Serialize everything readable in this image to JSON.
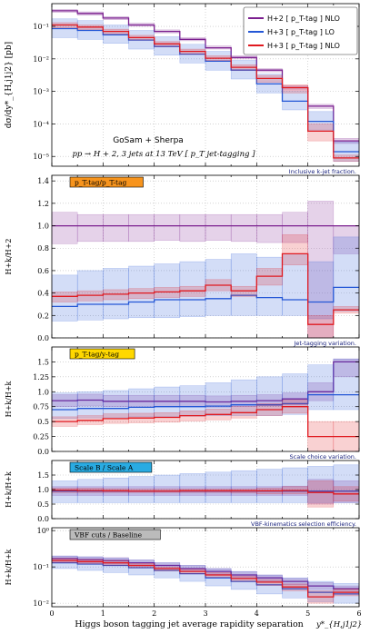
{
  "x_bins": [
    0,
    0.5,
    1,
    1.5,
    2,
    2.5,
    3,
    3.5,
    4,
    4.5,
    5,
    5.5,
    6
  ],
  "legend": [
    {
      "label": "H+2 [ p_T-tag ] NLO",
      "color": "#7b1f8f"
    },
    {
      "label": "H+3 [ p_T-tag ] LO",
      "color": "#2457d6"
    },
    {
      "label": "H+3 [ p_T-tag ] NLO",
      "color": "#e0191f"
    }
  ],
  "annotations": {
    "generator": "GoSam + Sherpa",
    "process": "pp → H + 2, 3 jets at 13 TeV  [ p_T jet-tagging ]"
  },
  "xlabel": "Higgs boson tagging jet average rapidity separation",
  "xlabel_symbol": "y*_{H,j1j2}",
  "chart_data": [
    {
      "type": "step",
      "id": "main",
      "ylabel": "dσ/dy*_{H,j1j2} [pb]",
      "yscale": "log",
      "ylim": [
        5e-06,
        0.5
      ],
      "yticks": [
        {
          "v": 1e-05,
          "l": "10⁻⁵"
        },
        {
          "v": 0.0001,
          "l": "10⁻⁴"
        },
        {
          "v": 0.001,
          "l": "10⁻³"
        },
        {
          "v": 0.01,
          "l": "10⁻²"
        },
        {
          "v": 0.1,
          "l": "10⁻¹"
        }
      ],
      "footer": "Inclusive k-jet fraction.",
      "series": [
        {
          "name": "H+2 [ p_T-tag ] NLO",
          "color": "#7b1f8f",
          "values": [
            0.3,
            0.25,
            0.18,
            0.11,
            0.07,
            0.04,
            0.022,
            0.011,
            0.0045,
            0.0013,
            0.00035,
            3e-05
          ],
          "lo": [
            0.27,
            0.22,
            0.16,
            0.1,
            0.063,
            0.036,
            0.02,
            0.0099,
            0.004,
            0.0011,
            0.0003,
            2.5e-05
          ],
          "hi": [
            0.33,
            0.28,
            0.2,
            0.125,
            0.078,
            0.045,
            0.025,
            0.0125,
            0.005,
            0.0015,
            0.0004,
            3.6e-05
          ]
        },
        {
          "name": "H+3 [ p_T-tag ] LO",
          "color": "#2457d6",
          "values": [
            0.085,
            0.075,
            0.055,
            0.038,
            0.024,
            0.014,
            0.0085,
            0.0045,
            0.0017,
            0.0005,
            0.00012,
            1.4e-05
          ],
          "lo": [
            0.045,
            0.04,
            0.03,
            0.02,
            0.013,
            0.0075,
            0.0045,
            0.0024,
            0.0009,
            0.00027,
            6.5e-05,
            7e-06
          ],
          "hi": [
            0.17,
            0.15,
            0.11,
            0.075,
            0.048,
            0.028,
            0.017,
            0.009,
            0.0034,
            0.001,
            0.00024,
            2.8e-05
          ]
        },
        {
          "name": "H+3 [ p_T-tag ] NLO",
          "color": "#e0191f",
          "values": [
            0.11,
            0.095,
            0.07,
            0.045,
            0.029,
            0.017,
            0.0105,
            0.0055,
            0.0025,
            0.0013,
            6e-05,
            9e-06
          ],
          "lo": [
            0.09,
            0.08,
            0.058,
            0.038,
            0.024,
            0.014,
            0.0088,
            0.0045,
            0.0019,
            0.0009,
            3e-05,
            7e-06
          ],
          "hi": [
            0.13,
            0.11,
            0.082,
            0.053,
            0.034,
            0.02,
            0.0125,
            0.0066,
            0.0031,
            0.0016,
            0.0001,
            1.1e-05
          ]
        }
      ]
    },
    {
      "type": "step",
      "id": "ratio1",
      "ylabel": "H+k/H+2",
      "yscale": "linear",
      "ylim": [
        0,
        1.45
      ],
      "yticks": [
        {
          "v": 0,
          "l": "0.0"
        },
        {
          "v": 0.2,
          "l": "0.2"
        },
        {
          "v": 0.4,
          "l": "0.4"
        },
        {
          "v": 0.6,
          "l": "0.6"
        },
        {
          "v": 0.8,
          "l": "0.8"
        },
        {
          "v": 1.0,
          "l": "1.0"
        },
        {
          "v": 1.2,
          "l": "1.2"
        },
        {
          "v": 1.4,
          "l": "1.4"
        }
      ],
      "tag": {
        "text": "p_T-tag/p_T-tag",
        "bg": "#f7941d"
      },
      "footer": "Jet-tagging variation.",
      "series": [
        {
          "name": "H+2 [ p_T-tag ] NLO",
          "color": "#7b1f8f",
          "values": [
            1,
            1,
            1,
            1,
            1,
            1,
            1,
            1,
            1,
            1,
            1,
            1
          ],
          "lo": [
            0.84,
            0.86,
            0.86,
            0.86,
            0.87,
            0.86,
            0.87,
            0.86,
            0.85,
            0.85,
            0.0,
            0.75
          ],
          "hi": [
            1.12,
            1.1,
            1.1,
            1.1,
            1.1,
            1.1,
            1.1,
            1.1,
            1.1,
            1.12,
            1.22,
            1.0
          ]
        },
        {
          "name": "H+3 [ p_T-tag ] LO",
          "color": "#2457d6",
          "values": [
            0.28,
            0.3,
            0.3,
            0.32,
            0.34,
            0.34,
            0.35,
            0.38,
            0.36,
            0.34,
            0.32,
            0.45
          ],
          "lo": [
            0.15,
            0.16,
            0.17,
            0.18,
            0.18,
            0.19,
            0.2,
            0.2,
            0.2,
            0.2,
            0.17,
            0.24
          ],
          "hi": [
            0.56,
            0.6,
            0.62,
            0.64,
            0.66,
            0.68,
            0.7,
            0.75,
            0.72,
            0.75,
            0.68,
            0.9
          ]
        },
        {
          "name": "H+3 [ p_T-tag ] NLO",
          "color": "#e0191f",
          "values": [
            0.37,
            0.38,
            0.39,
            0.4,
            0.41,
            0.42,
            0.47,
            0.42,
            0.55,
            0.75,
            0.12,
            0.25
          ],
          "lo": [
            0.32,
            0.33,
            0.34,
            0.35,
            0.36,
            0.37,
            0.42,
            0.37,
            0.47,
            0.65,
            0.0,
            0.22
          ],
          "hi": [
            0.41,
            0.42,
            0.43,
            0.44,
            0.45,
            0.46,
            0.52,
            0.46,
            0.62,
            0.92,
            0.2,
            0.28
          ]
        }
      ]
    },
    {
      "type": "step",
      "id": "ratio2",
      "ylabel": "H+k/H+k",
      "yscale": "linear",
      "ylim": [
        0,
        1.75
      ],
      "yticks": [
        {
          "v": 0,
          "l": "0.0"
        },
        {
          "v": 0.25,
          "l": "0.25"
        },
        {
          "v": 0.5,
          "l": "0.5"
        },
        {
          "v": 0.75,
          "l": "0.75"
        },
        {
          "v": 1.0,
          "l": "1.0"
        },
        {
          "v": 1.25,
          "l": "1.25"
        },
        {
          "v": 1.5,
          "l": "1.5"
        }
      ],
      "tag": {
        "text": "p_T-tag/y-tag",
        "bg": "#ffd800"
      },
      "footer": "Scale choice variation.",
      "series": [
        {
          "name": "H+2 [ p_T-tag ] NLO",
          "color": "#7b1f8f",
          "values": [
            0.85,
            0.86,
            0.84,
            0.84,
            0.84,
            0.84,
            0.83,
            0.84,
            0.85,
            0.88,
            1.0,
            1.5
          ],
          "lo": [
            0.75,
            0.76,
            0.75,
            0.74,
            0.75,
            0.75,
            0.74,
            0.75,
            0.76,
            0.78,
            0.85,
            1.25
          ],
          "hi": [
            0.95,
            0.96,
            0.94,
            0.94,
            0.94,
            0.94,
            0.93,
            0.94,
            0.95,
            0.98,
            1.15,
            1.55
          ]
        },
        {
          "name": "H+3 [ p_T-tag ] LO",
          "color": "#2457d6",
          "values": [
            0.7,
            0.72,
            0.72,
            0.74,
            0.75,
            0.75,
            0.76,
            0.78,
            0.78,
            0.8,
            0.95,
            0.95
          ],
          "lo": [
            0.55,
            0.56,
            0.57,
            0.58,
            0.58,
            0.59,
            0.6,
            0.6,
            0.6,
            0.62,
            0.7,
            0.7
          ],
          "hi": [
            0.98,
            1.0,
            1.02,
            1.05,
            1.08,
            1.1,
            1.15,
            1.2,
            1.25,
            1.3,
            1.45,
            1.55
          ]
        },
        {
          "name": "H+3 [ p_T-tag ] NLO",
          "color": "#e0191f",
          "values": [
            0.5,
            0.52,
            0.55,
            0.56,
            0.57,
            0.6,
            0.62,
            0.65,
            0.7,
            0.75,
            0.25,
            0.25
          ],
          "lo": [
            0.42,
            0.45,
            0.47,
            0.48,
            0.49,
            0.51,
            0.53,
            0.56,
            0.6,
            0.64,
            0.0,
            0.0
          ],
          "hi": [
            0.58,
            0.6,
            0.63,
            0.64,
            0.65,
            0.68,
            0.71,
            0.75,
            0.8,
            0.86,
            0.5,
            0.5
          ]
        }
      ]
    },
    {
      "type": "step",
      "id": "ratio3",
      "ylabel": "H+k/H+k",
      "yscale": "linear",
      "ylim": [
        0,
        2.0
      ],
      "yticks": [
        {
          "v": 0,
          "l": "0.0"
        },
        {
          "v": 0.5,
          "l": "0.5"
        },
        {
          "v": 1.0,
          "l": "1.0"
        },
        {
          "v": 1.5,
          "l": "1.5"
        }
      ],
      "tag": {
        "text": "Scale B / Scale A",
        "bg": "#29abe2"
      },
      "footer": "VBF-kinematics selection efficiency.",
      "series": [
        {
          "name": "H+2 [ p_T-tag ] NLO",
          "color": "#7b1f8f",
          "values": [
            0.95,
            0.95,
            0.95,
            0.95,
            0.95,
            0.95,
            0.95,
            0.95,
            0.95,
            0.95,
            0.95,
            0.95
          ],
          "lo": [
            0.8,
            0.8,
            0.8,
            0.8,
            0.8,
            0.8,
            0.8,
            0.8,
            0.8,
            0.8,
            0.5,
            0.55
          ],
          "hi": [
            1.1,
            1.1,
            1.1,
            1.1,
            1.1,
            1.1,
            1.1,
            1.1,
            1.1,
            1.12,
            1.35,
            1.3
          ]
        },
        {
          "name": "H+3 [ p_T-tag ] LO",
          "color": "#2457d6",
          "values": [
            0.95,
            0.95,
            0.95,
            0.95,
            0.95,
            0.95,
            0.95,
            0.95,
            0.95,
            0.95,
            0.95,
            0.95
          ],
          "lo": [
            0.55,
            0.55,
            0.55,
            0.55,
            0.55,
            0.55,
            0.55,
            0.55,
            0.55,
            0.55,
            0.55,
            0.55
          ],
          "hi": [
            1.3,
            1.35,
            1.4,
            1.45,
            1.5,
            1.55,
            1.6,
            1.65,
            1.7,
            1.75,
            1.8,
            1.85
          ]
        },
        {
          "name": "H+3 [ p_T-tag ] NLO",
          "color": "#e0191f",
          "values": [
            0.98,
            0.97,
            0.96,
            0.95,
            0.95,
            0.96,
            0.96,
            0.96,
            0.96,
            0.97,
            0.9,
            0.85
          ],
          "lo": [
            0.9,
            0.9,
            0.9,
            0.9,
            0.9,
            0.9,
            0.9,
            0.88,
            0.85,
            0.85,
            0.4,
            0.6
          ],
          "hi": [
            1.05,
            1.05,
            1.03,
            1.02,
            1.02,
            1.02,
            1.02,
            1.02,
            1.05,
            1.1,
            1.3,
            1.1
          ]
        }
      ]
    },
    {
      "type": "step",
      "id": "ratio4",
      "ylabel": "H+k/H+k",
      "yscale": "log",
      "ylim": [
        0.008,
        1.2
      ],
      "yticks": [
        {
          "v": 0.01,
          "l": "10⁻²"
        },
        {
          "v": 0.1,
          "l": "10⁻¹"
        },
        {
          "v": 1,
          "l": "10⁰"
        }
      ],
      "tag": {
        "text": "VBF cuts / Baseline",
        "bg": "#bbbbbb"
      },
      "series": [
        {
          "name": "H+2 [ p_T-tag ] NLO",
          "color": "#7b1f8f",
          "values": [
            0.17,
            0.16,
            0.15,
            0.13,
            0.11,
            0.09,
            0.075,
            0.06,
            0.05,
            0.04,
            0.03,
            0.025
          ],
          "lo": [
            0.14,
            0.13,
            0.12,
            0.105,
            0.09,
            0.075,
            0.062,
            0.05,
            0.04,
            0.032,
            0.024,
            0.02
          ],
          "hi": [
            0.2,
            0.19,
            0.18,
            0.155,
            0.13,
            0.11,
            0.09,
            0.073,
            0.06,
            0.048,
            0.037,
            0.03
          ]
        },
        {
          "name": "H+3 [ p_T-tag ] LO",
          "color": "#2457d6",
          "values": [
            0.13,
            0.12,
            0.11,
            0.095,
            0.08,
            0.065,
            0.05,
            0.04,
            0.032,
            0.025,
            0.02,
            0.018
          ],
          "lo": [
            0.09,
            0.08,
            0.07,
            0.06,
            0.05,
            0.04,
            0.03,
            0.024,
            0.018,
            0.014,
            0.011,
            0.01
          ],
          "hi": [
            0.2,
            0.19,
            0.175,
            0.155,
            0.13,
            0.11,
            0.09,
            0.075,
            0.06,
            0.05,
            0.04,
            0.035
          ]
        },
        {
          "name": "H+3 [ p_T-tag ] NLO",
          "color": "#e0191f",
          "values": [
            0.15,
            0.14,
            0.13,
            0.11,
            0.09,
            0.075,
            0.06,
            0.048,
            0.038,
            0.028,
            0.015,
            0.02
          ],
          "lo": [
            0.13,
            0.12,
            0.11,
            0.095,
            0.078,
            0.064,
            0.052,
            0.04,
            0.031,
            0.022,
            0.01,
            0.016
          ],
          "hi": [
            0.17,
            0.16,
            0.15,
            0.125,
            0.1,
            0.086,
            0.07,
            0.056,
            0.045,
            0.034,
            0.022,
            0.025
          ]
        }
      ]
    }
  ]
}
